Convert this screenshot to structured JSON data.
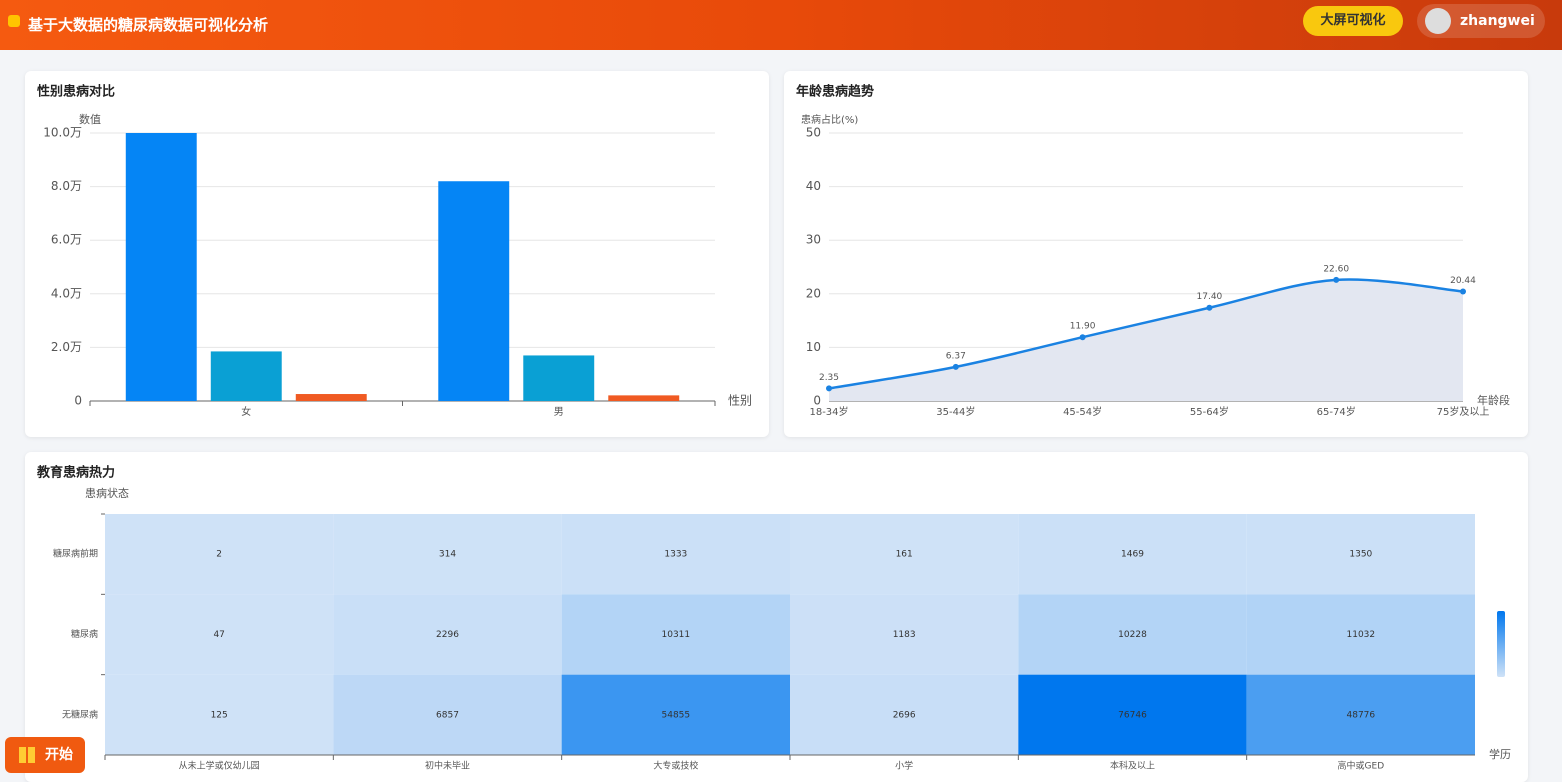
{
  "header": {
    "title": "基于大数据的糖尿病数据可视化分析",
    "screen_button": "大屏可视化",
    "user": "zhangwei",
    "start": "开始"
  },
  "chart_data": [
    {
      "type": "bar",
      "title": "性别患病对比",
      "y_label": "数值",
      "x_label": "性别",
      "categories": [
        "女",
        "男"
      ],
      "series": [
        {
          "color": "#0585f5",
          "values": [
            100000,
            82000
          ]
        },
        {
          "color": "#0aa0d4",
          "values": [
            18500,
            17000
          ]
        },
        {
          "color": "#f05a22",
          "values": [
            2600,
            2100
          ]
        }
      ],
      "ylim": [
        0,
        100000
      ],
      "yticks": [
        0,
        {
          "value": 20000,
          "label": "2.0万"
        },
        {
          "value": 40000,
          "label": "4.0万"
        },
        {
          "value": 60000,
          "label": "6.0万"
        },
        {
          "value": 80000,
          "label": "8.0万"
        },
        {
          "value": 100000,
          "label": "10.0万"
        }
      ],
      "grid": true
    },
    {
      "type": "line",
      "title": "年龄患病趋势",
      "y_label": "患病占比(%)",
      "x_label": "年龄段",
      "categories": [
        "18-34岁",
        "35-44岁",
        "45-54岁",
        "55-64岁",
        "65-74岁",
        "75岁及以上"
      ],
      "values": [
        2.35,
        6.37,
        11.9,
        17.4,
        22.6,
        20.44
      ],
      "value_labels": [
        "2.35",
        "6.37",
        "11.90",
        "17.40",
        "22.60",
        "20.44"
      ],
      "color": "#1a82e2",
      "area_color": "#e3e7f1",
      "ylim": [
        0,
        50
      ],
      "yticks": [
        0,
        10,
        20,
        30,
        40,
        50
      ],
      "grid": true
    },
    {
      "type": "heatmap",
      "title": "教育患病热力",
      "y_label": "患病状态",
      "x_label": "学历",
      "x_categories": [
        "从未上学或仅幼儿园",
        "初中未毕业",
        "大专或技校",
        "小学",
        "本科及以上",
        "高中或GED"
      ],
      "y_categories": [
        "糖尿病前期",
        "糖尿病",
        "无糖尿病"
      ],
      "values": [
        [
          2,
          314,
          1333,
          161,
          1469,
          1350
        ],
        [
          47,
          2296,
          10311,
          1183,
          10228,
          11032
        ],
        [
          125,
          6857,
          54855,
          2696,
          76746,
          48776
        ]
      ],
      "colors": [
        "#cfe2f7",
        "#0077ee"
      ]
    }
  ]
}
